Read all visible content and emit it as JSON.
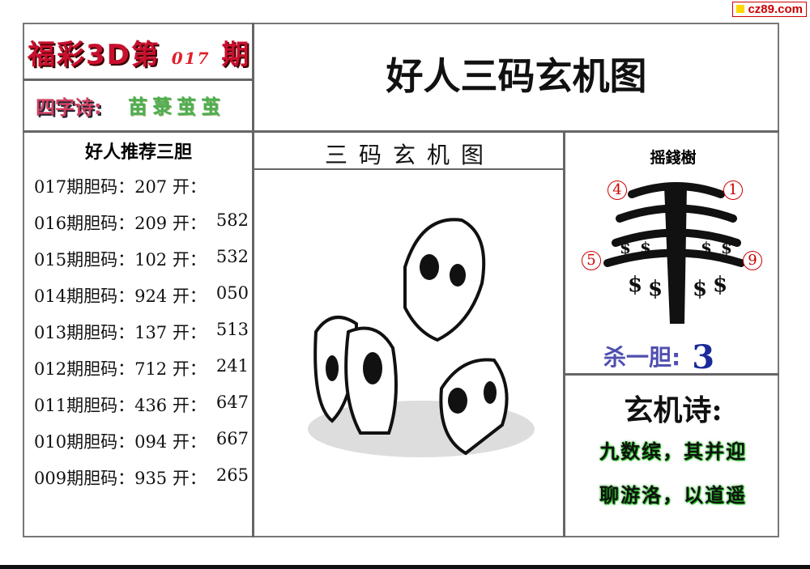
{
  "watermark": "cz89.com",
  "header": {
    "prefix": "福彩3D第",
    "issue": "017",
    "suffix": "期"
  },
  "four_char_poem": {
    "label": "四字诗:",
    "value": "苗菉茧茧"
  },
  "title": "好人三码玄机图",
  "picture_title": "三码玄机图",
  "recommend": {
    "heading": "好人推荐三胆",
    "rows": [
      {
        "label": "017期胆码：207 开：",
        "result": ""
      },
      {
        "label": "016期胆码：209 开：",
        "result": "582"
      },
      {
        "label": "015期胆码：102 开：",
        "result": "532"
      },
      {
        "label": "014期胆码：924 开：",
        "result": "050"
      },
      {
        "label": "013期胆码：137 开：",
        "result": "513"
      },
      {
        "label": "012期胆码：712 开：",
        "result": "241"
      },
      {
        "label": "011期胆码：436 开：",
        "result": "647"
      },
      {
        "label": "010期胆码：094 开：",
        "result": "667"
      },
      {
        "label": "009期胆码：935 开：",
        "result": "265"
      }
    ]
  },
  "tree": {
    "title": "摇錢樹",
    "numbers": [
      "4",
      "1",
      "5",
      "9"
    ]
  },
  "kill": {
    "label": "杀一胆:",
    "value": "3"
  },
  "poem": {
    "heading": "玄机诗:",
    "lines": [
      "九数缤，其并迎",
      "聊游洛，以道遥"
    ]
  }
}
